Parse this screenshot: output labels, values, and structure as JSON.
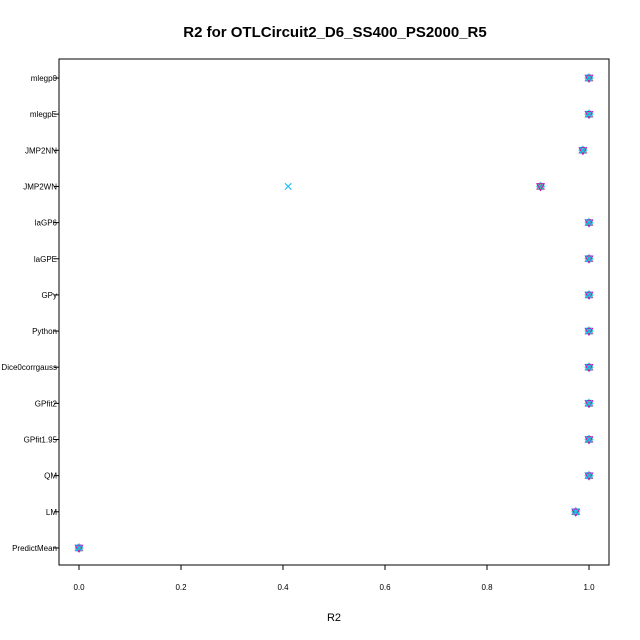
{
  "chart_data": {
    "type": "scatter",
    "title": "R2 for OTLCircuit2_D6_SS400_PS2000_R5",
    "xlabel": "R2",
    "ylabel": "",
    "xlim": [
      0.0,
      1.0
    ],
    "xticks": [
      "0.0",
      "0.2",
      "0.4",
      "0.6",
      "0.8",
      "1.0"
    ],
    "categories": [
      "mlegp0",
      "mlegpE",
      "JMP2NN",
      "JMP2WN",
      "laGP6",
      "laGPE",
      "GPy",
      "Python",
      "Dice0corrgauss",
      "GPfit2",
      "GPfit1.95",
      "QM",
      "LM",
      "PredictMean"
    ],
    "markers": [
      {
        "shape": "circle",
        "color": "#000000"
      },
      {
        "shape": "triangle",
        "color": "#DF536B"
      },
      {
        "shape": "plus",
        "color": "#61D04F"
      },
      {
        "shape": "x",
        "color": "#2297E6"
      },
      {
        "shape": "diamond",
        "color": "#28E2E5"
      },
      {
        "shape": "triangle-down",
        "color": "#CD0BBC"
      },
      {
        "shape": "x",
        "color": "#00BFFF"
      }
    ],
    "series": [
      {
        "values": [
          1.0,
          1.0,
          0.988,
          0.905,
          1.0,
          1.0,
          1.0,
          1.0,
          1.0,
          1.0,
          1.0,
          1.0,
          0.974,
          0.0
        ]
      },
      {
        "values": [
          1.0,
          1.0,
          0.988,
          0.905,
          1.0,
          1.0,
          1.0,
          1.0,
          1.0,
          1.0,
          1.0,
          1.0,
          0.974,
          0.0
        ]
      },
      {
        "values": [
          1.0,
          1.0,
          0.988,
          0.905,
          1.0,
          1.0,
          1.0,
          1.0,
          1.0,
          1.0,
          1.0,
          1.0,
          0.974,
          0.0
        ]
      },
      {
        "values": [
          1.0,
          1.0,
          0.988,
          0.905,
          1.0,
          1.0,
          1.0,
          1.0,
          1.0,
          1.0,
          1.0,
          1.0,
          0.974,
          0.0
        ]
      },
      {
        "values": [
          1.0,
          1.0,
          0.988,
          0.905,
          1.0,
          1.0,
          1.0,
          1.0,
          1.0,
          1.0,
          1.0,
          1.0,
          0.974,
          0.0
        ]
      },
      {
        "values": [
          1.0,
          1.0,
          0.988,
          0.905,
          1.0,
          1.0,
          1.0,
          1.0,
          1.0,
          1.0,
          1.0,
          1.0,
          0.974,
          0.0
        ]
      },
      {
        "values": [
          1.0,
          1.0,
          0.988,
          0.41,
          1.0,
          1.0,
          1.0,
          1.0,
          1.0,
          1.0,
          1.0,
          1.0,
          0.974,
          0.0
        ]
      }
    ]
  }
}
